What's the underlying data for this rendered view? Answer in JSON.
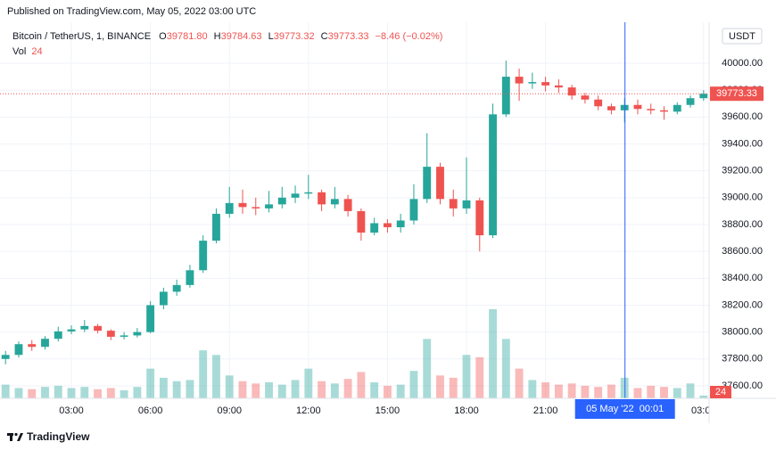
{
  "header": {
    "published": "Published on TradingView.com, May 05, 2022 03:00 UTC"
  },
  "legend": {
    "symbol": "Bitcoin / TetherUS, 1, BINANCE",
    "ohlc": [
      {
        "key": "O",
        "value": 39781.8,
        "label": "39781.80"
      },
      {
        "key": "H",
        "value": 39784.63,
        "label": "39784.63"
      },
      {
        "key": "L",
        "value": 39773.32,
        "label": "39773.32"
      },
      {
        "key": "C",
        "value": 39773.33,
        "label": "39773.33"
      }
    ],
    "change": "−8.46 (−0.02%)",
    "volume_key": "Vol",
    "volume_value": 24
  },
  "currency": "USDT",
  "footer": {
    "brand": "TradingView"
  },
  "chart_data": {
    "type": "candlestick",
    "x": [
      0.5,
      1,
      1.5,
      2,
      2.5,
      3,
      3.5,
      4,
      4.5,
      5,
      5.5,
      6,
      6.5,
      7,
      7.5,
      8,
      8.5,
      9,
      9.5,
      10,
      10.5,
      11,
      11.5,
      12,
      12.5,
      13,
      13.5,
      14,
      14.5,
      15,
      15.5,
      16,
      16.5,
      17,
      17.5,
      18,
      18.5,
      19,
      19.5,
      20,
      20.5,
      21,
      21.5,
      22,
      22.5,
      23,
      23.5,
      24,
      24.5,
      25,
      25.5,
      26,
      26.5,
      27
    ],
    "open": [
      37800,
      37830,
      37910,
      37890,
      37950,
      38005,
      38020,
      38045,
      38010,
      37965,
      37975,
      38000,
      38200,
      38300,
      38350,
      38460,
      38680,
      38880,
      38960,
      38930,
      38920,
      38950,
      39000,
      39030,
      39040,
      38950,
      38990,
      38900,
      38740,
      38810,
      38780,
      38830,
      38990,
      39230,
      38990,
      38920,
      38980,
      38720,
      39620,
      39900,
      39850,
      39860,
      39835,
      39820,
      39760,
      39730,
      39680,
      39650,
      39690,
      39660,
      39650,
      39640,
      39690,
      39740
    ],
    "high": [
      37860,
      37930,
      37940,
      37970,
      38040,
      38050,
      38090,
      38060,
      38020,
      38000,
      38030,
      38230,
      38330,
      38390,
      38500,
      38720,
      38920,
      39080,
      39060,
      39000,
      39050,
      39080,
      39090,
      39170,
      39060,
      39080,
      39020,
      38920,
      38850,
      38840,
      38880,
      39100,
      39480,
      39260,
      39060,
      39300,
      39000,
      39700,
      40020,
      39960,
      39930,
      39900,
      39880,
      39840,
      39780,
      39760,
      39700,
      39740,
      39730,
      39700,
      39680,
      39710,
      39760,
      39800
    ],
    "low": [
      37760,
      37810,
      37860,
      37870,
      37930,
      37985,
      38000,
      37990,
      37940,
      37945,
      37960,
      37990,
      38170,
      38270,
      38330,
      38440,
      38660,
      38850,
      38880,
      38870,
      38890,
      38920,
      38960,
      38990,
      38900,
      38920,
      38860,
      38680,
      38720,
      38740,
      38740,
      38800,
      38960,
      38950,
      38860,
      38880,
      38600,
      38700,
      39600,
      39720,
      39810,
      39790,
      39780,
      39730,
      39700,
      39650,
      39620,
      39560,
      39620,
      39620,
      39580,
      39620,
      39670,
      39720
    ],
    "close": [
      37830,
      37910,
      37890,
      37950,
      38005,
      38020,
      38045,
      38010,
      37965,
      37975,
      38000,
      38200,
      38300,
      38350,
      38460,
      38680,
      38880,
      38960,
      38930,
      38920,
      38950,
      39000,
      39030,
      39040,
      38950,
      38990,
      38900,
      38740,
      38810,
      38780,
      38830,
      38990,
      39230,
      38990,
      38920,
      38980,
      38720,
      39620,
      39900,
      39850,
      39860,
      39835,
      39820,
      39760,
      39730,
      39680,
      39650,
      39690,
      39660,
      39650,
      39640,
      39690,
      39740,
      39773.33
    ],
    "volume": [
      120,
      90,
      80,
      100,
      110,
      90,
      100,
      80,
      90,
      70,
      100,
      260,
      180,
      150,
      160,
      420,
      380,
      200,
      150,
      130,
      140,
      120,
      160,
      260,
      150,
      130,
      170,
      230,
      140,
      110,
      120,
      240,
      520,
      200,
      180,
      380,
      360,
      780,
      520,
      260,
      160,
      140,
      120,
      130,
      110,
      100,
      120,
      180,
      90,
      110,
      100,
      90,
      130,
      24
    ],
    "up_color": "#26a69a",
    "down_color": "#ef5350",
    "xlim": [
      0.29,
      27.21
    ],
    "ylim": [
      37507,
      40305
    ],
    "xticks": [
      {
        "value": 3,
        "label": "03:00"
      },
      {
        "value": 6,
        "label": "06:00"
      },
      {
        "value": 9,
        "label": "09:00"
      },
      {
        "value": 12,
        "label": "12:00"
      },
      {
        "value": 15,
        "label": "15:00"
      },
      {
        "value": 18,
        "label": "18:00"
      },
      {
        "value": 21,
        "label": "21:00"
      },
      {
        "value": 27,
        "label": "03:00"
      }
    ],
    "yticks": [
      {
        "value": 37600,
        "label": "37600.00"
      },
      {
        "value": 37800,
        "label": "37800.00"
      },
      {
        "value": 38000,
        "label": "38000.00"
      },
      {
        "value": 38200,
        "label": "38200.00"
      },
      {
        "value": 38400,
        "label": "38400.00"
      },
      {
        "value": 38600,
        "label": "38600.00"
      },
      {
        "value": 38800,
        "label": "38800.00"
      },
      {
        "value": 39000,
        "label": "39000.00"
      },
      {
        "value": 39200,
        "label": "39200.00"
      },
      {
        "value": 39400,
        "label": "39400.00"
      },
      {
        "value": 39600,
        "label": "39600.00"
      },
      {
        "value": 39800,
        "label": "39800.00"
      },
      {
        "value": 40000,
        "label": "40000.00"
      }
    ],
    "last_price": {
      "value": 39773.33,
      "label": "39773.33"
    },
    "crosshair": {
      "x": 24.0167,
      "label": "05 May '22  00:01"
    },
    "grid": true
  }
}
